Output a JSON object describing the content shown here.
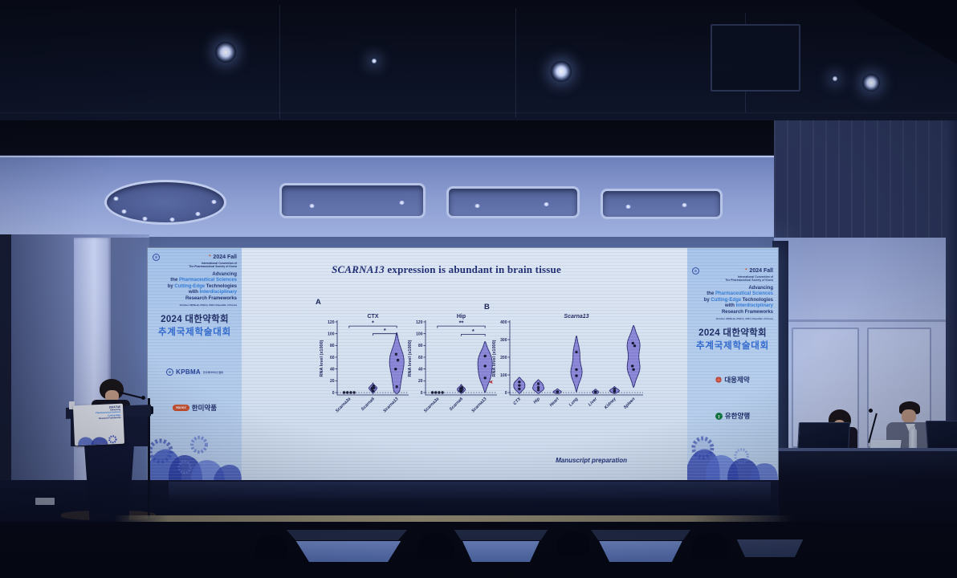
{
  "icons": {
    "sparkle": "✦"
  },
  "screen": {
    "slide": {
      "title_em": "SCARNA13",
      "title_rest": " expression is abundant in brain tissue",
      "panel_a_label": "A",
      "panel_b_label": "B",
      "manuscript_note": "Manuscript preparation",
      "footer_society": "The Pharmaceutical Society of Korea"
    },
    "banner": {
      "fall_title": "2024 Fall",
      "conv_line1": "International Convention of",
      "conv_line2": "The Pharmaceutical Society of Korea",
      "headline": {
        "l1": "Advancing",
        "l2a": "the ",
        "l2b": "Pharmaceutical Sciences",
        "l3a": "by ",
        "l3b": "Cutting-Edge",
        "l3c": " Technologies",
        "l4a": "with ",
        "l4b": "Interdisciplinary",
        "l5": "Research Frameworks"
      },
      "date_line": "October 23(Wed)~25(Fri), 2024 | Republic of Korea",
      "korean_line1": "2024 대한약학회",
      "korean_line2": "추계국제학술대회"
    },
    "sponsors": {
      "kpbma_abbr": "KPBMA",
      "kpbma_kr": "한국제약바이오협회",
      "hanmi_en": "Hanmi",
      "hanmi_kr": "한미약품",
      "daewoong_kr": "대웅제약",
      "yuhan_kr": "유한양행"
    }
  },
  "chart_data": [
    {
      "type": "violin",
      "panel": "A",
      "title": "CTX",
      "title_italic": false,
      "ylabel": "RNA level (x1000)",
      "ylim": [
        0,
        120
      ],
      "yticks": [
        0,
        20,
        40,
        60,
        80,
        100,
        120
      ],
      "categories": [
        {
          "label": "Scarna3a",
          "points": [
            0,
            0,
            0,
            0
          ],
          "violin": false
        },
        {
          "label": "Scarna6",
          "points": [
            3,
            6,
            8,
            8,
            11
          ],
          "violin": true,
          "halfwidth": 5
        },
        {
          "label": "Scarna13",
          "points": [
            10,
            40,
            55,
            65
          ],
          "violin": true,
          "halfwidth": 9
        }
      ],
      "significance": [
        {
          "from": 0,
          "to": 2,
          "label": "*",
          "y": 113
        },
        {
          "from": 1,
          "to": 2,
          "label": "*",
          "y": 100
        }
      ]
    },
    {
      "type": "violin",
      "panel": "A",
      "title": "Hip",
      "title_italic": false,
      "ylabel": "RNA level (x1000)",
      "ylim": [
        0,
        120
      ],
      "yticks": [
        0,
        20,
        40,
        60,
        80,
        100,
        120
      ],
      "categories": [
        {
          "label": "Scarna3a",
          "points": [
            0,
            0,
            0,
            0
          ],
          "violin": false
        },
        {
          "label": "Scarna6",
          "points": [
            2,
            4,
            5,
            7,
            9
          ],
          "violin": true,
          "halfwidth": 5
        },
        {
          "label": "Scarna13",
          "points": [
            25,
            45,
            62
          ],
          "violin": true,
          "halfwidth": 9
        }
      ],
      "significance": [
        {
          "from": 0,
          "to": 2,
          "label": "**",
          "y": 113
        },
        {
          "from": 1,
          "to": 2,
          "label": "*",
          "y": 99
        }
      ],
      "marker": {
        "cat": 2,
        "value": 18,
        "color": "#c03030"
      }
    },
    {
      "type": "violin",
      "panel": "B",
      "title": "Scarna13",
      "title_italic": true,
      "ylabel": "RNA level (x1000)",
      "ylim": [
        0,
        400
      ],
      "yticks": [
        0,
        100,
        200,
        300,
        400
      ],
      "categories": [
        {
          "label": "CTX",
          "points": [
            20,
            40,
            60
          ],
          "violin": true,
          "halfwidth": 7
        },
        {
          "label": "Hip",
          "points": [
            15,
            30,
            50
          ],
          "violin": true,
          "halfwidth": 7
        },
        {
          "label": "Heart",
          "points": [
            3,
            4,
            5
          ],
          "violin": true,
          "halfwidth": 5
        },
        {
          "label": "Lung",
          "points": [
            95,
            130,
            230
          ],
          "violin": true,
          "halfwidth": 7
        },
        {
          "label": "Liver",
          "points": [
            2,
            3,
            3
          ],
          "violin": true,
          "halfwidth": 4
        },
        {
          "label": "Kidney",
          "points": [
            5,
            10,
            18
          ],
          "violin": true,
          "halfwidth": 6
        },
        {
          "label": "Spleen",
          "points": [
            130,
            150,
            265,
            280
          ],
          "violin": true,
          "halfwidth": 8
        }
      ]
    }
  ]
}
